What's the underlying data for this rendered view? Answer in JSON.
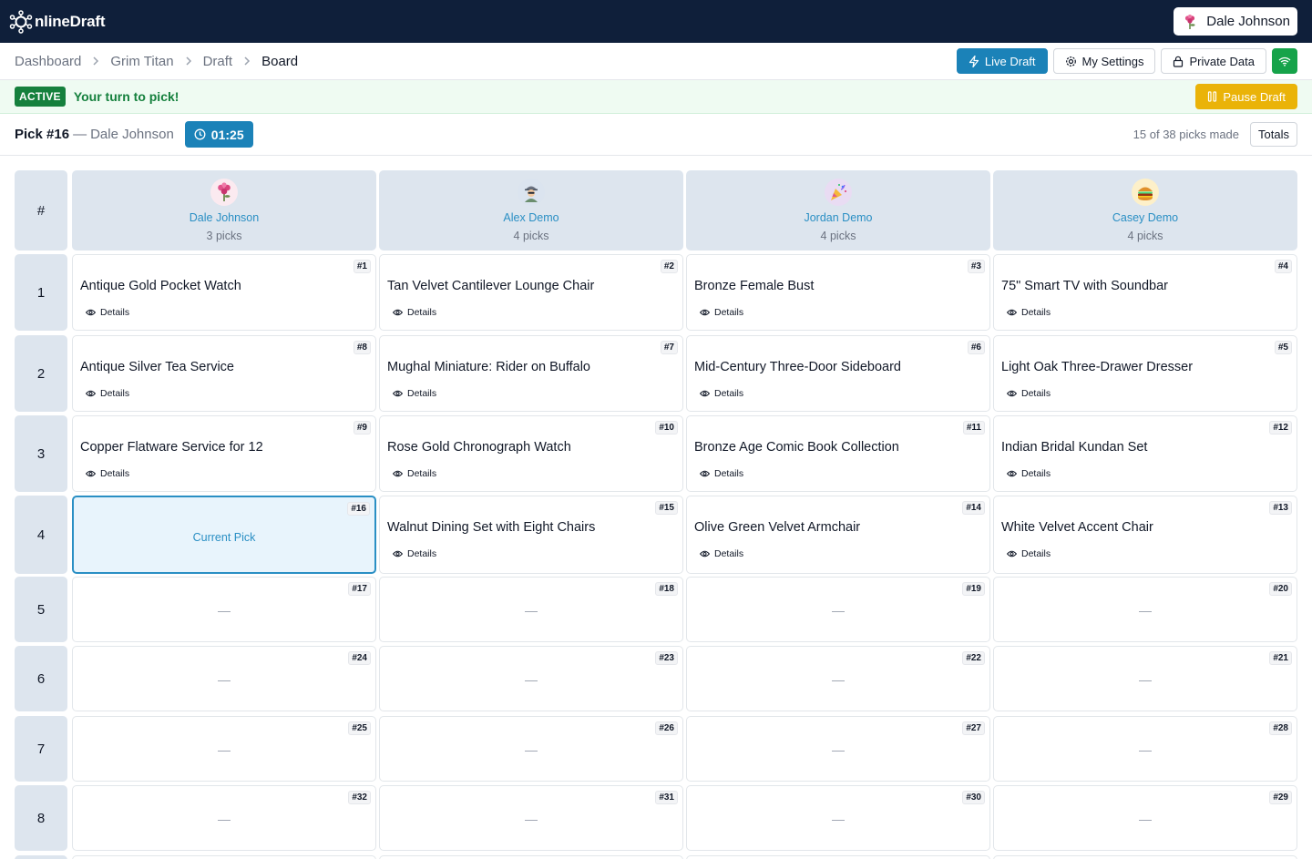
{
  "app": {
    "logo_text": "nlineDraft",
    "logo_icon": "network-o-icon"
  },
  "user": {
    "name": "Dale Johnson",
    "avatar_icon": "flower-avatar-icon"
  },
  "breadcrumbs": [
    {
      "label": "Dashboard"
    },
    {
      "label": "Grim Titan"
    },
    {
      "label": "Draft"
    },
    {
      "label": "Board"
    }
  ],
  "actions": {
    "live_draft": "Live Draft",
    "my_settings": "My Settings",
    "private_data": "Private Data",
    "status_icon": "wifi-icon"
  },
  "status": {
    "badge": "ACTIVE",
    "message": "Your turn to pick!",
    "pause_label": "Pause Draft"
  },
  "pick": {
    "label": "Pick #16",
    "separator": "—",
    "user": "Dale Johnson",
    "timer": "01:25",
    "picks_made": "15 of 38 picks made",
    "totals_label": "Totals"
  },
  "board": {
    "num_header": "#",
    "participants": [
      {
        "name": "Dale Johnson",
        "picks": "3 picks",
        "avatar_bg": "#fbeaf0",
        "avatar_icon": "flower-avatar-icon"
      },
      {
        "name": "Alex Demo",
        "picks": "4 picks",
        "avatar_bg": "#dbe4ef",
        "avatar_icon": "agent-avatar-icon"
      },
      {
        "name": "Jordan Demo",
        "picks": "4 picks",
        "avatar_bg": "#e9dcf3",
        "avatar_icon": "party-avatar-icon"
      },
      {
        "name": "Casey Demo",
        "picks": "4 picks",
        "avatar_bg": "#fdf0c9",
        "avatar_icon": "burger-avatar-icon"
      }
    ],
    "details_label": "Details",
    "current_label": "Current Pick",
    "empty_label": "—",
    "rounds": [
      {
        "round": "1",
        "cells": [
          {
            "pick": "#1",
            "item": "Antique Gold Pocket Watch"
          },
          {
            "pick": "#2",
            "item": "Tan Velvet Cantilever Lounge Chair"
          },
          {
            "pick": "#3",
            "item": "Bronze Female Bust"
          },
          {
            "pick": "#4",
            "item": "75\" Smart TV with Soundbar"
          }
        ]
      },
      {
        "round": "2",
        "cells": [
          {
            "pick": "#8",
            "item": "Antique Silver Tea Service"
          },
          {
            "pick": "#7",
            "item": "Mughal Miniature: Rider on Buffalo"
          },
          {
            "pick": "#6",
            "item": "Mid-Century Three-Door Sideboard"
          },
          {
            "pick": "#5",
            "item": "Light Oak Three-Drawer Dresser"
          }
        ]
      },
      {
        "round": "3",
        "cells": [
          {
            "pick": "#9",
            "item": "Copper Flatware Service for 12"
          },
          {
            "pick": "#10",
            "item": "Rose Gold Chronograph Watch"
          },
          {
            "pick": "#11",
            "item": "Bronze Age Comic Book Collection"
          },
          {
            "pick": "#12",
            "item": "Indian Bridal Kundan Set"
          }
        ]
      },
      {
        "round": "4",
        "cells": [
          {
            "pick": "#16",
            "item": "",
            "current": true
          },
          {
            "pick": "#15",
            "item": "Walnut Dining Set with Eight Chairs"
          },
          {
            "pick": "#14",
            "item": "Olive Green Velvet Armchair"
          },
          {
            "pick": "#13",
            "item": "White Velvet Accent Chair"
          }
        ]
      },
      {
        "round": "5",
        "cells": [
          {
            "pick": "#17",
            "item": ""
          },
          {
            "pick": "#18",
            "item": ""
          },
          {
            "pick": "#19",
            "item": ""
          },
          {
            "pick": "#20",
            "item": ""
          }
        ]
      },
      {
        "round": "6",
        "cells": [
          {
            "pick": "#24",
            "item": ""
          },
          {
            "pick": "#23",
            "item": ""
          },
          {
            "pick": "#22",
            "item": ""
          },
          {
            "pick": "#21",
            "item": ""
          }
        ]
      },
      {
        "round": "7",
        "cells": [
          {
            "pick": "#25",
            "item": ""
          },
          {
            "pick": "#26",
            "item": ""
          },
          {
            "pick": "#27",
            "item": ""
          },
          {
            "pick": "#28",
            "item": ""
          }
        ]
      },
      {
        "round": "8",
        "cells": [
          {
            "pick": "#32",
            "item": ""
          },
          {
            "pick": "#31",
            "item": ""
          },
          {
            "pick": "#30",
            "item": ""
          },
          {
            "pick": "#29",
            "item": ""
          }
        ]
      },
      {
        "round": "",
        "cells": [
          {
            "pick": "",
            "item": ""
          },
          {
            "pick": "",
            "item": ""
          },
          {
            "pick": "",
            "item": ""
          },
          {
            "pick": "",
            "item": ""
          }
        ]
      }
    ]
  }
}
